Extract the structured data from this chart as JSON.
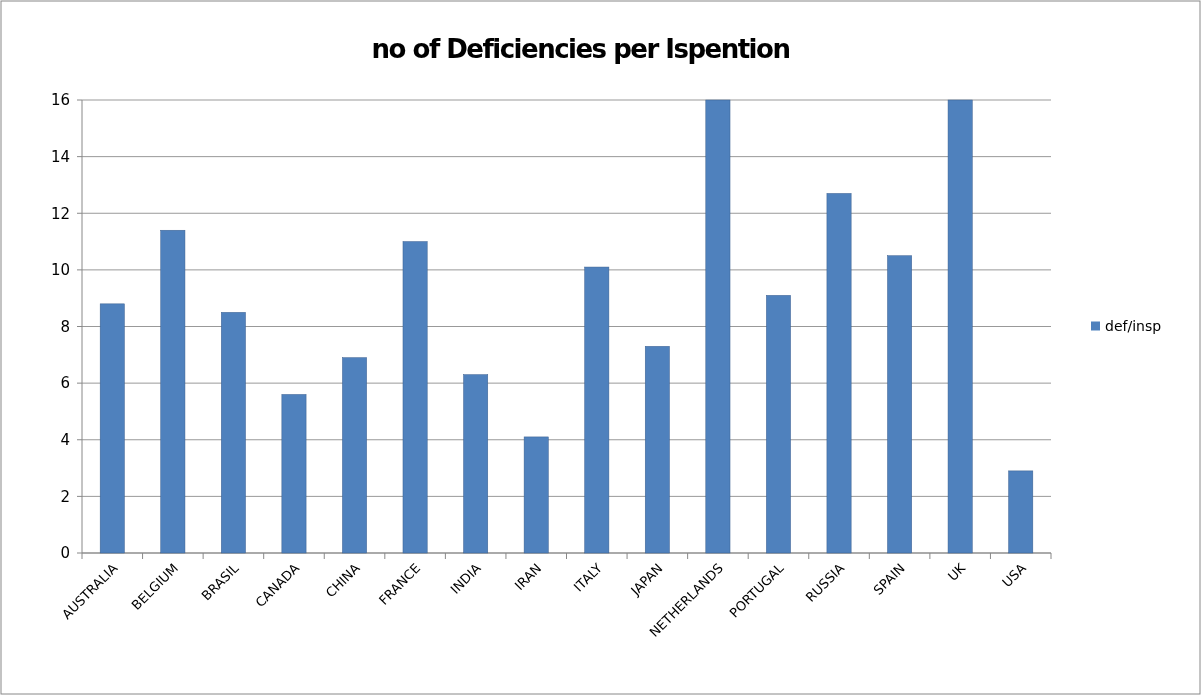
{
  "chart_data": {
    "type": "bar",
    "title": "no of Deficiencies per Ispention",
    "categories": [
      "AUSTRALIA",
      "BELGIUM",
      "BRASIL",
      "CANADA",
      "CHINA",
      "FRANCE",
      "INDIA",
      "IRAN",
      "ITALY",
      "JAPAN",
      "NETHERLANDS",
      "PORTUGAL",
      "RUSSIA",
      "SPAIN",
      "UK",
      "USA"
    ],
    "series": [
      {
        "name": "def/insp",
        "color": "#4f81bd",
        "values": [
          8.8,
          11.4,
          8.5,
          5.6,
          6.9,
          11.0,
          6.3,
          4.1,
          10.1,
          7.3,
          16.0,
          9.1,
          12.7,
          10.5,
          16.0,
          2.9
        ]
      }
    ],
    "ylim": [
      0,
      16
    ],
    "yticks": [
      0,
      2,
      4,
      6,
      8,
      10,
      12,
      14,
      16
    ],
    "grid": "y",
    "legend": "right"
  }
}
